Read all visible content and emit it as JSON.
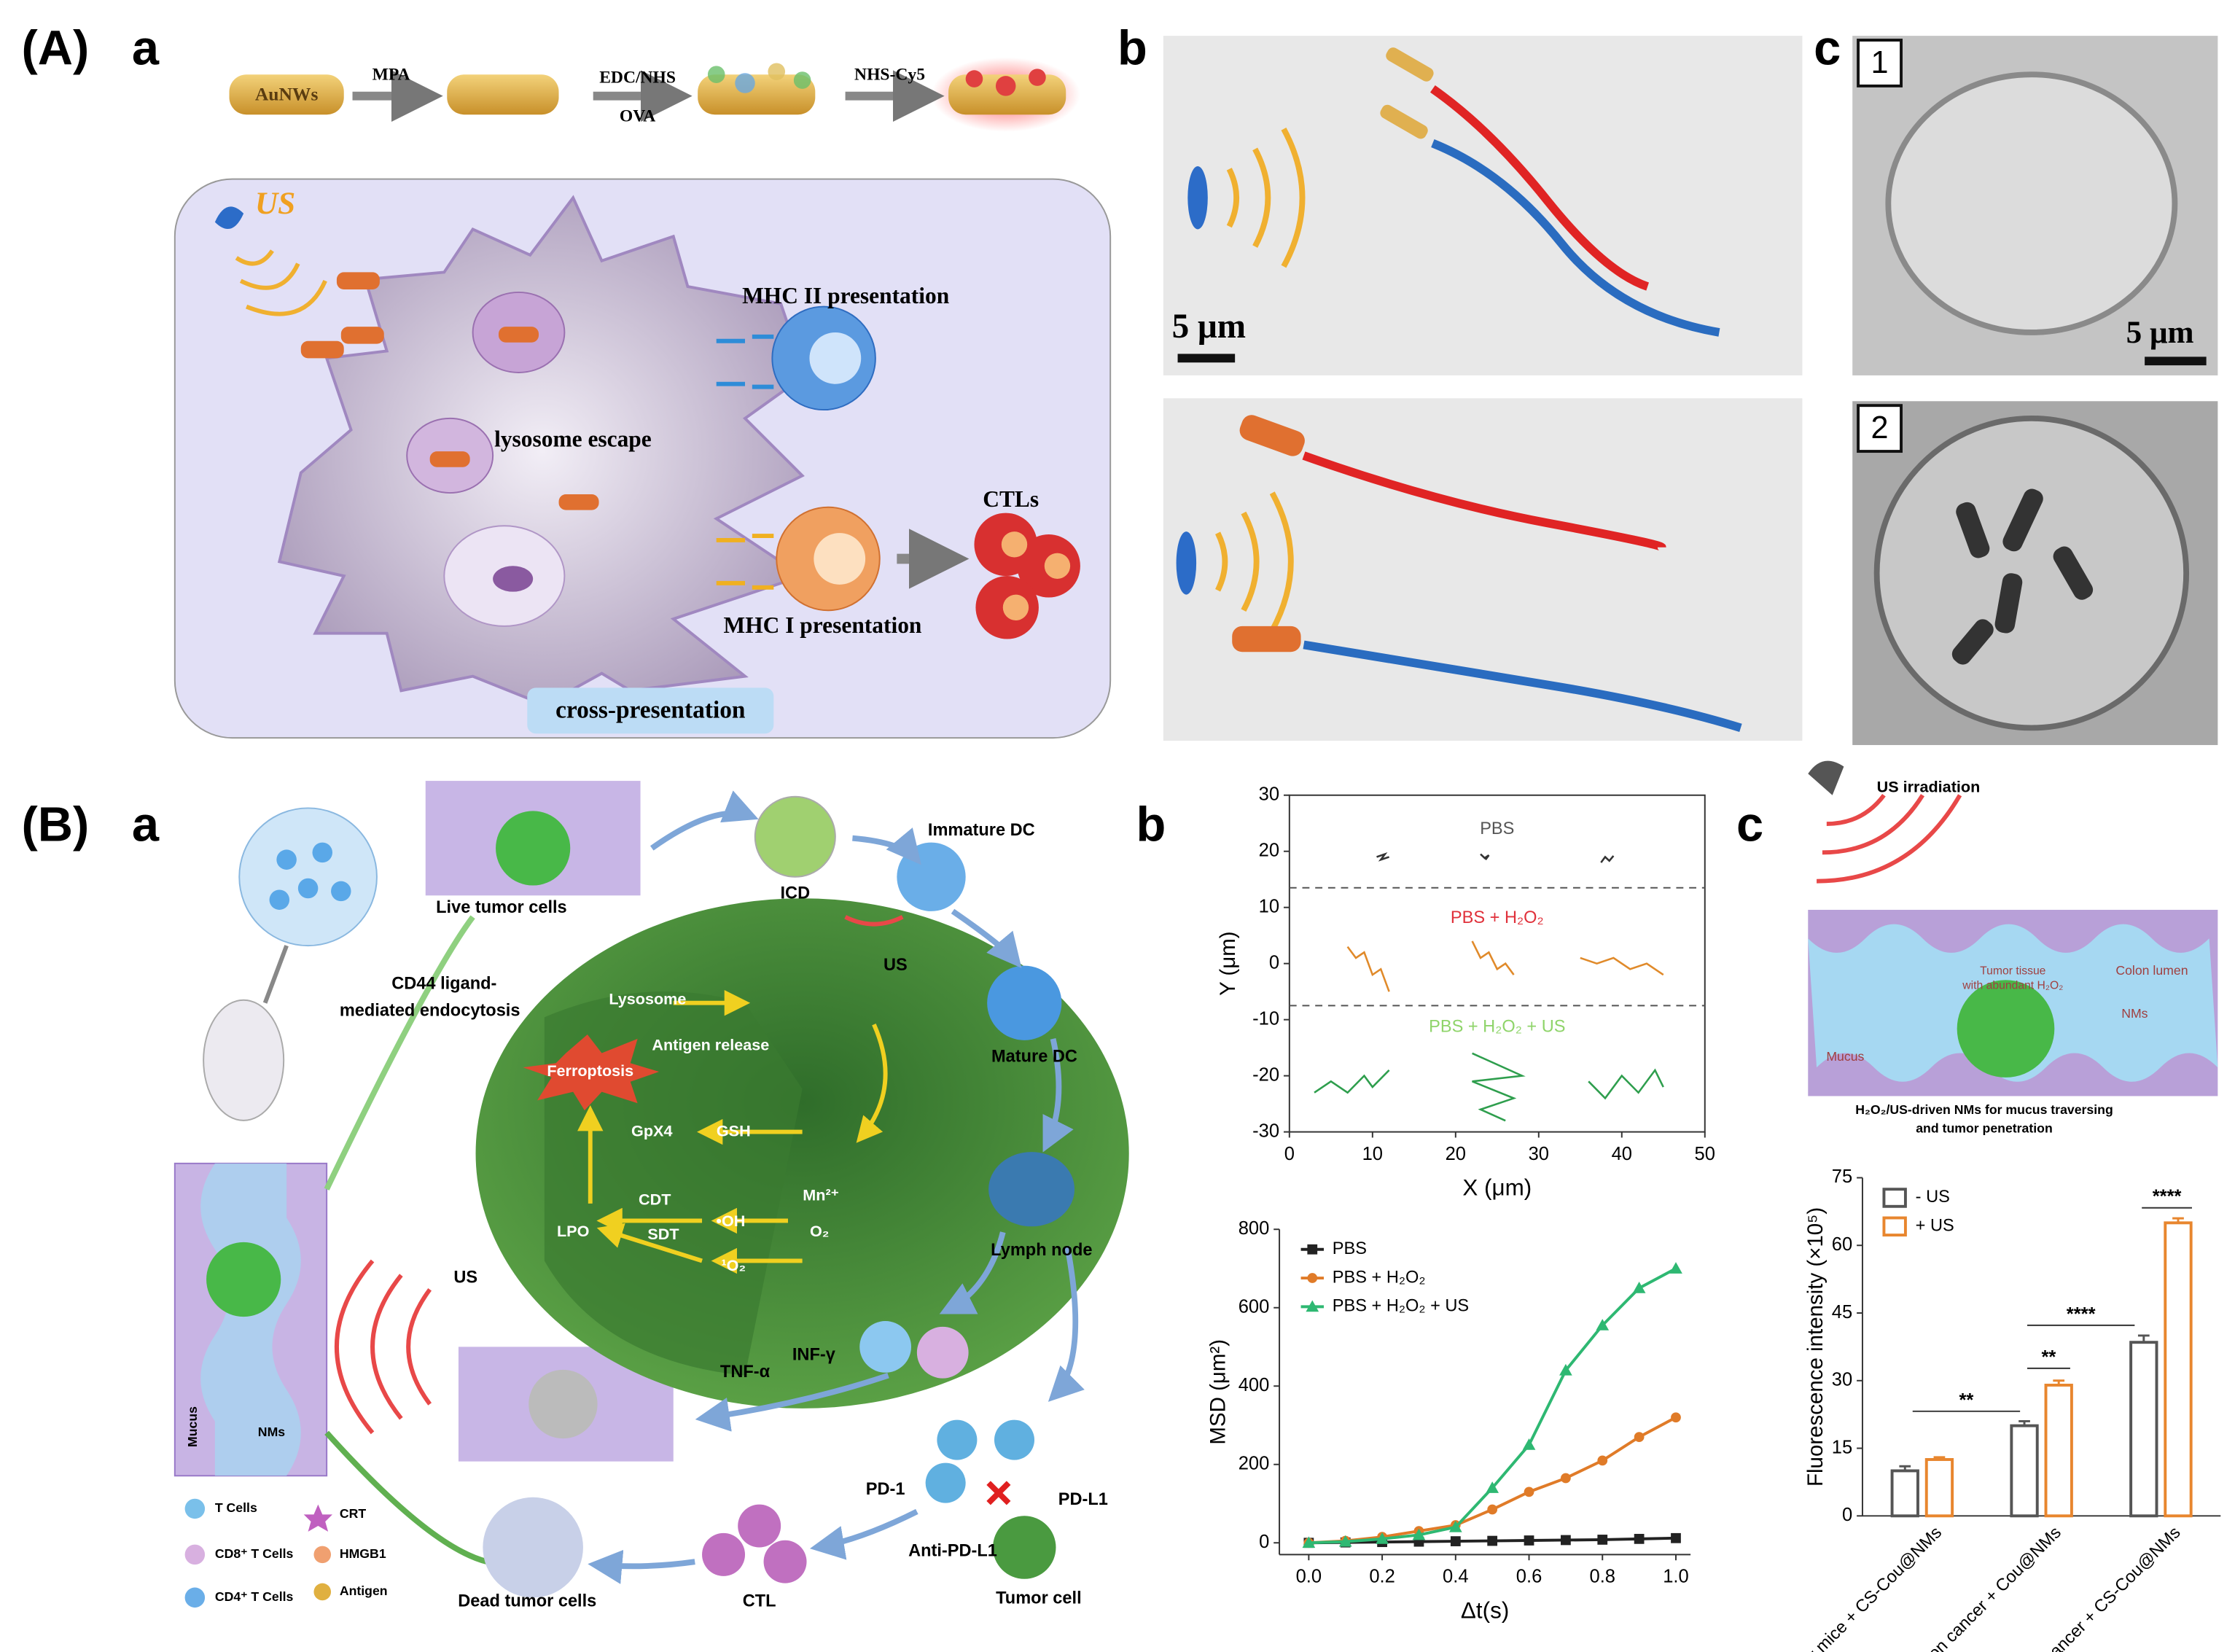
{
  "figure": {
    "panel_A": {
      "label": "(A)",
      "a": {
        "label": "a",
        "steps": [
          "AuNWs",
          "MPA",
          "EDC/NHS",
          "OVA",
          "NHS-Cy5"
        ],
        "us": "US",
        "mhc2": "MHC II presentation",
        "escape": "lysosome escape",
        "mhc1": "MHC I presentation",
        "ctls": "CTLs",
        "cross": "cross-presentation"
      },
      "b": {
        "label": "b",
        "scale": "5 μm"
      },
      "c": {
        "label": "c",
        "scale": "5 μm",
        "frames": [
          "1",
          "2"
        ]
      }
    },
    "panel_B": {
      "label": "(B)",
      "a": {
        "label": "a",
        "live": "Live tumor cells",
        "icd": "ICD",
        "immature": "Immature DC",
        "cd44": [
          "CD44 ligand-",
          "mediated endocytosis"
        ],
        "lysosome": "Lysosome",
        "antigen_release": "Antigen release",
        "us1": "US",
        "mature": "Mature DC",
        "ferroptosis": "Ferroptosis",
        "gpx4": "GpX4",
        "gsh": "GSH",
        "cdt": "CDT",
        "oh": "•OH",
        "mn": "Mn²⁺",
        "lpo": "LPO",
        "sdt": "SDT",
        "singlet": "¹O₂",
        "o2": "O₂",
        "lymph": "Lymph node",
        "us2": "US",
        "tnf": "TNF-α",
        "inf": "INF-γ",
        "pd1": "PD-1",
        "pdl1": "PD-L1",
        "anti": "Anti-PD-L1",
        "tumor_cell": "Tumor cell",
        "ctl": "CTL",
        "dead": "Dead tumor cells",
        "mucus": "Mucus",
        "nms": "NMs",
        "legend": [
          "T Cells",
          "CD8⁺ T Cells",
          "CD4⁺ T Cells",
          "CRT",
          "HMGB1",
          "Antigen"
        ]
      },
      "b": {
        "label": "b"
      },
      "c": {
        "label": "c",
        "us": "US irradiation",
        "tissue": [
          "Tumor tissue",
          "with abundant H₂O₂"
        ],
        "lumen": "Colon lumen",
        "nms": "NMs",
        "mucus": "Mucus",
        "caption": [
          "H₂O₂/US-driven NMs for mucus traversing",
          "and tumor penetration"
        ]
      }
    }
  },
  "chart_data": [
    {
      "type": "line",
      "xlabel": "X (μm)",
      "ylabel": "Y (μm)",
      "xlim": [
        0,
        50
      ],
      "ylim": [
        -30,
        30
      ],
      "xticks": [
        0,
        10,
        20,
        30,
        40,
        50
      ],
      "yticks": [
        -30,
        -20,
        -10,
        0,
        10,
        20,
        30
      ],
      "hlines": [
        13.5,
        -7.5
      ],
      "annotations": [
        {
          "text": "PBS",
          "color": "#555555"
        },
        {
          "text": "PBS + H₂O₂",
          "color": "#e0303a"
        },
        {
          "text": "PBS + H₂O₂ + US",
          "color": "#8fd46a"
        }
      ],
      "series": [
        {
          "color": "#333333",
          "x": [
            10.5,
            11.5,
            11,
            12
          ],
          "values": [
            19,
            19.5,
            18.5,
            19
          ]
        },
        {
          "color": "#333333",
          "x": [
            23,
            23.5,
            24,
            23.6
          ],
          "values": [
            19.5,
            18.8,
            19.3,
            18.5
          ]
        },
        {
          "color": "#333333",
          "x": [
            37.5,
            38,
            38.5,
            39
          ],
          "values": [
            18,
            19,
            18.3,
            19.2
          ]
        },
        {
          "color": "#e08a2a",
          "x": [
            7,
            8,
            9,
            10,
            11,
            12
          ],
          "values": [
            3,
            1,
            2,
            -2,
            -1,
            -5
          ]
        },
        {
          "color": "#e08a2a",
          "x": [
            22,
            23,
            24,
            25,
            26,
            27
          ],
          "values": [
            4,
            1,
            2,
            -1,
            0,
            -2
          ]
        },
        {
          "color": "#e08a2a",
          "x": [
            35,
            37,
            39,
            41,
            43,
            45
          ],
          "values": [
            1,
            0,
            1,
            -1,
            0,
            -2
          ]
        },
        {
          "color": "#2e9e4d",
          "x": [
            3,
            5,
            7,
            9,
            10,
            12
          ],
          "values": [
            -23,
            -21,
            -23,
            -20,
            -22,
            -19
          ]
        },
        {
          "color": "#2e9e4d",
          "x": [
            22,
            28,
            22,
            27,
            23,
            26
          ],
          "values": [
            -16,
            -20,
            -21,
            -24,
            -26,
            -28
          ]
        },
        {
          "color": "#2e9e4d",
          "x": [
            36,
            38,
            40,
            42,
            44,
            45
          ],
          "values": [
            -21,
            -24,
            -20,
            -23,
            -19,
            -22
          ]
        }
      ]
    },
    {
      "type": "line",
      "xlabel": "Δt(s)",
      "ylabel": "MSD (μm²)",
      "xlim": [
        -0.08,
        1.04
      ],
      "ylim": [
        -30,
        800
      ],
      "xticks": [
        {
          "value": 0,
          "label": "0.0"
        },
        0.2,
        0.4,
        0.6,
        0.8,
        {
          "value": 1,
          "label": "1.0"
        }
      ],
      "yticks": [
        0,
        200,
        400,
        600,
        800
      ],
      "legend": "upper left",
      "x": [
        0,
        0.1,
        0.2,
        0.3,
        0.4,
        0.5,
        0.6,
        0.7,
        0.8,
        0.9,
        1.0
      ],
      "series": [
        {
          "name": "PBS",
          "color": "#222222",
          "marker": "square",
          "values": [
            0,
            1,
            2,
            3,
            4,
            5,
            6,
            7,
            8,
            10,
            12
          ]
        },
        {
          "name": "PBS + H₂O₂",
          "color": "#e07b28",
          "marker": "circle",
          "values": [
            0,
            5,
            15,
            30,
            45,
            85,
            130,
            165,
            210,
            270,
            320
          ]
        },
        {
          "name": "PBS + H₂O₂ + US",
          "color": "#2eb872",
          "marker": "triangle",
          "values": [
            0,
            3,
            10,
            20,
            40,
            140,
            250,
            440,
            555,
            650,
            700
          ]
        }
      ]
    },
    {
      "type": "bar",
      "ylabel": "Fluorescence intensity (×10⁵)",
      "ylim": [
        0,
        75
      ],
      "yticks": [
        0,
        15,
        30,
        45,
        60,
        75
      ],
      "legend": "upper left",
      "categories": [
        "Healthy mice + CS-Cou@NMs",
        "Colon cancer + Cou@NMs",
        "Colon cancer + CS-Cou@NMs"
      ],
      "series": [
        {
          "name": "- US",
          "color": "#555555",
          "values": [
            10,
            20,
            38.5
          ],
          "errors": [
            1,
            1,
            1.5
          ]
        },
        {
          "name": "+ US",
          "color": "#e8862e",
          "values": [
            12.5,
            29,
            65
          ],
          "errors": [
            0.5,
            1,
            1
          ]
        }
      ],
      "significance": [
        "**",
        "**",
        "****",
        "****"
      ]
    }
  ]
}
